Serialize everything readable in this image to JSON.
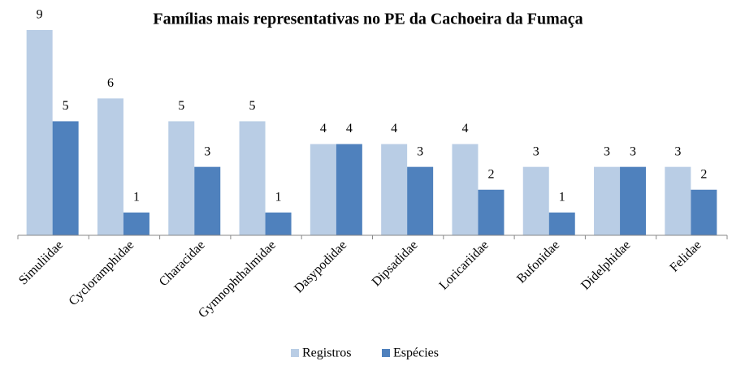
{
  "chart_data": {
    "type": "bar",
    "title": "Famílias mais representativas no PE da Cachoeira da Fumaça",
    "categories": [
      "Simuliidae",
      "Cycloramphidae",
      "Characidae",
      "Gymnophthalmidae",
      "Dasypodidae",
      "Dipsadidae",
      "Loricariidae",
      "Bufonidae",
      "Didelphidae",
      "Felidae"
    ],
    "series": [
      {
        "name": "Registros",
        "color": "#b9cde5",
        "values": [
          9,
          6,
          5,
          5,
          4,
          4,
          4,
          3,
          3,
          3
        ]
      },
      {
        "name": "Espécies",
        "color": "#4f81bd",
        "values": [
          5,
          1,
          3,
          1,
          4,
          3,
          2,
          1,
          3,
          2
        ]
      }
    ],
    "ylim": [
      0,
      9
    ],
    "legend": "bottom"
  }
}
